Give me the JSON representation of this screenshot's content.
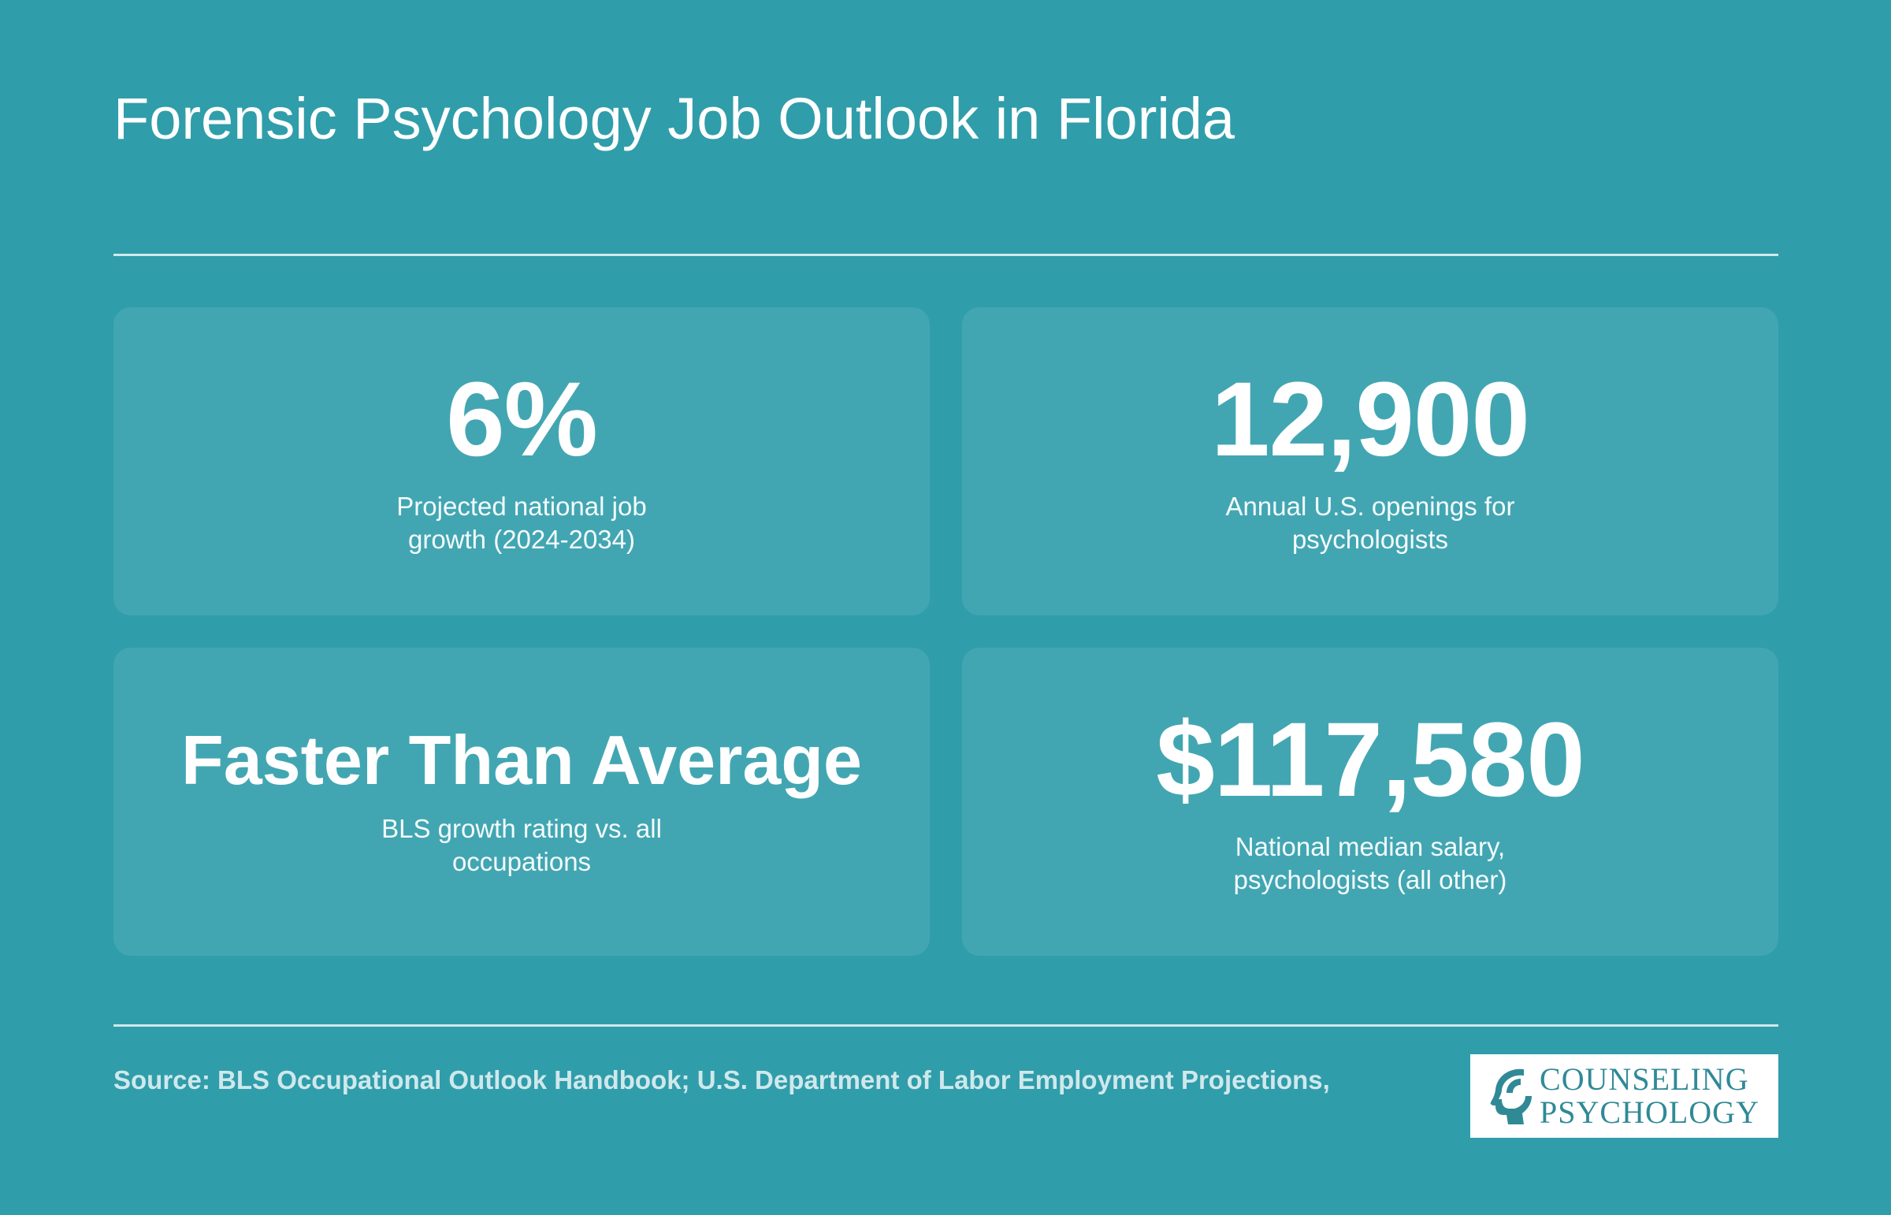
{
  "title": "Forensic Psychology Job Outlook in Florida",
  "stats": [
    {
      "value": "6%",
      "description": "Projected national job growth (2024-2034)"
    },
    {
      "value": "12,900",
      "description": "Annual U.S. openings for psychologists"
    },
    {
      "value": "Faster Than Average",
      "description": "BLS growth rating vs. all occupations"
    },
    {
      "value": "$117,580",
      "description": "National median salary, psychologists (all other)"
    }
  ],
  "source": "Source: BLS Occupational Outlook Handbook; U.S. Department of Labor Employment Projections,",
  "logo": {
    "line1": "COUNSELING",
    "line2": "PSYCHOLOGY",
    "icon": "head-profile-icon"
  },
  "colors": {
    "background": "#309daa",
    "card": "#42a6b2",
    "text": "#ffffff",
    "source_text": "#cfe8ec",
    "logo_text": "#2f8a96"
  }
}
